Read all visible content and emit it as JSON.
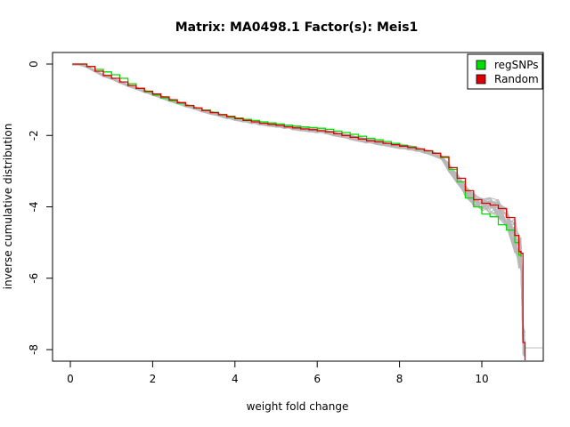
{
  "chart_data": {
    "type": "line",
    "title": "Matrix: MA0498.1 Factor(s): Meis1",
    "xlabel": "weight fold change",
    "ylabel": "inverse cumulative distribution",
    "xlim": [
      -0.6,
      11.4
    ],
    "ylim": [
      -8.3,
      0.25
    ],
    "xticks": [
      0,
      2,
      4,
      6,
      8,
      10
    ],
    "yticks": [
      0,
      -2,
      -4,
      -6,
      -8
    ],
    "grid": false,
    "legend_position": "top-right",
    "colors": {
      "regSNPs": "#00dd00",
      "Random": "#dd0000",
      "background": "#b8b8b8"
    },
    "series": [
      {
        "name": "regSNPs",
        "color": "#00dd00",
        "x": [
          0.05,
          0.2,
          0.4,
          0.6,
          0.8,
          1.0,
          1.2,
          1.4,
          1.6,
          1.8,
          2.0,
          2.2,
          2.4,
          2.6,
          2.8,
          3.0,
          3.2,
          3.4,
          3.6,
          3.8,
          4.0,
          4.2,
          4.4,
          4.6,
          4.8,
          5.0,
          5.2,
          5.4,
          5.6,
          5.8,
          6.0,
          6.2,
          6.4,
          6.6,
          6.8,
          7.0,
          7.2,
          7.4,
          7.6,
          7.8,
          8.0,
          8.2,
          8.4,
          8.6,
          8.8,
          9.0,
          9.2,
          9.4,
          9.6,
          9.8,
          10.0,
          10.2,
          10.4,
          10.6,
          10.8,
          10.9,
          10.95
        ],
        "y": [
          0,
          0,
          -0.07,
          -0.15,
          -0.22,
          -0.3,
          -0.4,
          -0.55,
          -0.68,
          -0.78,
          -0.87,
          -0.95,
          -1.03,
          -1.1,
          -1.17,
          -1.23,
          -1.29,
          -1.35,
          -1.41,
          -1.46,
          -1.51,
          -1.55,
          -1.58,
          -1.62,
          -1.65,
          -1.68,
          -1.71,
          -1.74,
          -1.76,
          -1.78,
          -1.8,
          -1.83,
          -1.88,
          -1.92,
          -1.97,
          -2.02,
          -2.08,
          -2.12,
          -2.17,
          -2.22,
          -2.28,
          -2.32,
          -2.38,
          -2.43,
          -2.5,
          -2.62,
          -2.95,
          -3.3,
          -3.75,
          -4.0,
          -4.2,
          -4.28,
          -4.5,
          -4.65,
          -5.0,
          -5.35,
          -5.4
        ]
      },
      {
        "name": "Random",
        "color": "#dd0000",
        "x": [
          0.05,
          0.2,
          0.4,
          0.6,
          0.8,
          1.0,
          1.2,
          1.4,
          1.6,
          1.8,
          2.0,
          2.2,
          2.4,
          2.6,
          2.8,
          3.0,
          3.2,
          3.4,
          3.6,
          3.8,
          4.0,
          4.2,
          4.4,
          4.6,
          4.8,
          5.0,
          5.2,
          5.4,
          5.6,
          5.8,
          6.0,
          6.2,
          6.4,
          6.6,
          6.8,
          7.0,
          7.2,
          7.4,
          7.6,
          7.8,
          8.0,
          8.2,
          8.4,
          8.6,
          8.8,
          9.0,
          9.2,
          9.4,
          9.6,
          9.8,
          10.0,
          10.2,
          10.4,
          10.6,
          10.8,
          10.9,
          10.95,
          11.0,
          11.05
        ],
        "y": [
          0,
          0,
          -0.07,
          -0.2,
          -0.32,
          -0.4,
          -0.5,
          -0.6,
          -0.68,
          -0.76,
          -0.84,
          -0.92,
          -1.0,
          -1.08,
          -1.16,
          -1.23,
          -1.3,
          -1.36,
          -1.42,
          -1.48,
          -1.53,
          -1.58,
          -1.62,
          -1.66,
          -1.69,
          -1.72,
          -1.76,
          -1.79,
          -1.82,
          -1.84,
          -1.87,
          -1.9,
          -1.95,
          -2.0,
          -2.05,
          -2.1,
          -2.15,
          -2.18,
          -2.22,
          -2.26,
          -2.3,
          -2.34,
          -2.38,
          -2.43,
          -2.5,
          -2.6,
          -2.9,
          -3.2,
          -3.55,
          -3.8,
          -3.9,
          -3.95,
          -4.05,
          -4.3,
          -4.8,
          -5.25,
          -5.3,
          -7.8,
          -8.3
        ]
      }
    ],
    "legend": [
      {
        "label": "regSNPs",
        "color": "#00dd00"
      },
      {
        "label": "Random",
        "color": "#dd0000"
      }
    ]
  }
}
